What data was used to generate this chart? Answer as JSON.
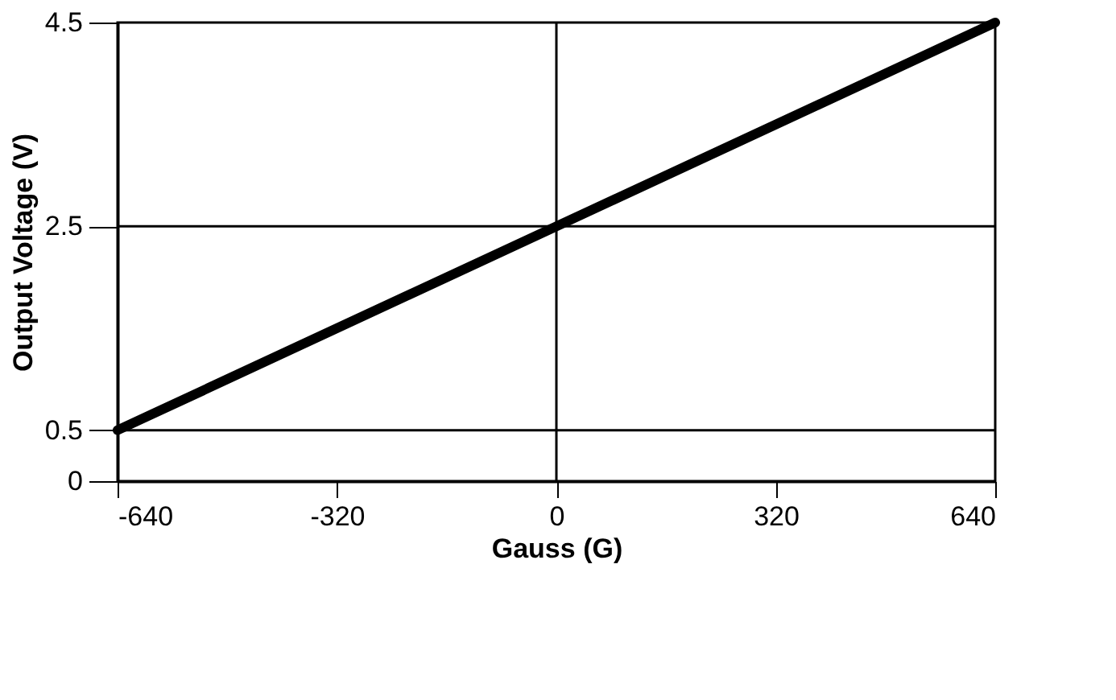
{
  "chart_data": {
    "type": "line",
    "xlabel": "Gauss (G)",
    "ylabel": "Output Voltage (V)",
    "x": [
      -640,
      640
    ],
    "series": [
      {
        "color": "#000000",
        "values": [
          0.5,
          4.5
        ]
      }
    ],
    "xlim": [
      -640,
      640
    ],
    "ylim": [
      0,
      4.5
    ],
    "xticks": [
      -640,
      -320,
      0,
      320,
      640
    ],
    "yticks": [
      0,
      0.5,
      2.5,
      4.5
    ],
    "ref_lines": [
      {
        "axis": "x",
        "value": 0,
        "color": "#000000"
      },
      {
        "axis": "y",
        "value": 0.5,
        "color": "#000000"
      },
      {
        "axis": "y",
        "value": 2.5,
        "color": "#000000"
      }
    ],
    "grid": false,
    "marker": "none",
    "line_style": "solid"
  }
}
